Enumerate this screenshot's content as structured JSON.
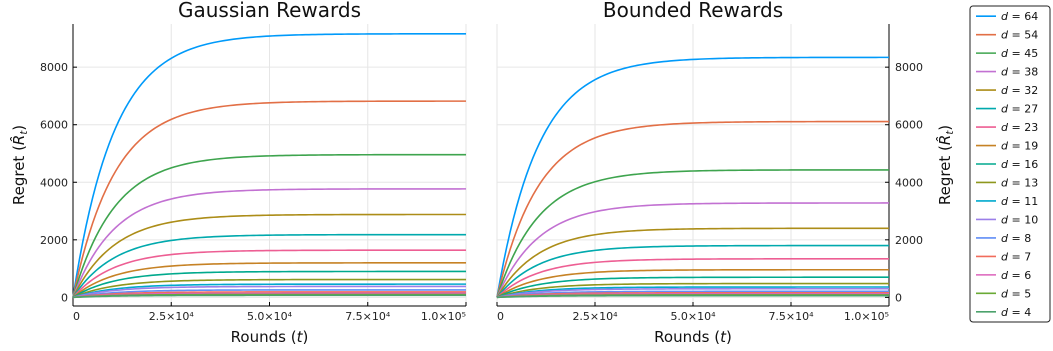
{
  "chart_data": [
    {
      "type": "line",
      "title": "Gaussian Rewards",
      "xlabel": "Rounds (t)",
      "ylabel": "Regret (R̂_t)",
      "xlim": [
        0,
        100000
      ],
      "ylim": [
        -300,
        9500
      ],
      "xticks": [
        0,
        25000,
        50000,
        75000,
        100000
      ],
      "xtick_labels": [
        "0",
        "2.5×10⁴",
        "5.0×10⁴",
        "7.5×10⁴",
        "1.0×10⁵"
      ],
      "yticks": [
        0,
        2000,
        4000,
        6000,
        8000
      ],
      "ytick_labels": [
        "0",
        "2000",
        "4000",
        "6000",
        "8000"
      ],
      "yaxis_side": "left",
      "grid": true,
      "curve_shape": "saturating",
      "series": [
        {
          "name": "d = 64",
          "final": 9160
        },
        {
          "name": "d = 54",
          "final": 6820
        },
        {
          "name": "d = 45",
          "final": 4960
        },
        {
          "name": "d = 38",
          "final": 3770
        },
        {
          "name": "d = 32",
          "final": 2880
        },
        {
          "name": "d = 27",
          "final": 2180
        },
        {
          "name": "d = 23",
          "final": 1640
        },
        {
          "name": "d = 19",
          "final": 1200
        },
        {
          "name": "d = 16",
          "final": 900
        },
        {
          "name": "d = 13",
          "final": 620
        },
        {
          "name": "d = 11",
          "final": 460
        },
        {
          "name": "d = 10",
          "final": 380
        },
        {
          "name": "d = 8",
          "final": 260
        },
        {
          "name": "d = 7",
          "final": 190
        },
        {
          "name": "d = 6",
          "final": 140
        },
        {
          "name": "d = 5",
          "final": 100
        },
        {
          "name": "d = 4",
          "final": 70
        }
      ]
    },
    {
      "type": "line",
      "title": "Bounded Rewards",
      "xlabel": "Rounds (t)",
      "ylabel": "Regret (R̂_t)",
      "xlim": [
        0,
        100000
      ],
      "ylim": [
        -300,
        9500
      ],
      "xticks": [
        0,
        25000,
        50000,
        75000,
        100000
      ],
      "xtick_labels": [
        "0",
        "2.5×10⁴",
        "5.0×10⁴",
        "7.5×10⁴",
        "1.0×10⁵"
      ],
      "yticks": [
        0,
        2000,
        4000,
        6000,
        8000
      ],
      "ytick_labels": [
        "0",
        "2000",
        "4000",
        "6000",
        "8000"
      ],
      "yaxis_side": "right",
      "grid": true,
      "curve_shape": "saturating",
      "series": [
        {
          "name": "d = 64",
          "final": 8340
        },
        {
          "name": "d = 54",
          "final": 6110
        },
        {
          "name": "d = 45",
          "final": 4430
        },
        {
          "name": "d = 38",
          "final": 3280
        },
        {
          "name": "d = 32",
          "final": 2400
        },
        {
          "name": "d = 27",
          "final": 1800
        },
        {
          "name": "d = 23",
          "final": 1340
        },
        {
          "name": "d = 19",
          "final": 960
        },
        {
          "name": "d = 16",
          "final": 700
        },
        {
          "name": "d = 13",
          "final": 480
        },
        {
          "name": "d = 11",
          "final": 360
        },
        {
          "name": "d = 10",
          "final": 300
        },
        {
          "name": "d = 8",
          "final": 210
        },
        {
          "name": "d = 7",
          "final": 160
        },
        {
          "name": "d = 6",
          "final": 120
        },
        {
          "name": "d = 5",
          "final": 85
        },
        {
          "name": "d = 4",
          "final": 60
        }
      ]
    }
  ],
  "legend": {
    "placement": "right",
    "entries": [
      "d = 64",
      "d = 54",
      "d = 45",
      "d = 38",
      "d = 32",
      "d = 27",
      "d = 23",
      "d = 19",
      "d = 16",
      "d = 13",
      "d = 11",
      "d = 10",
      "d = 8",
      "d = 7",
      "d = 6",
      "d = 5",
      "d = 4"
    ]
  },
  "colors": [
    "#009AFA",
    "#E26F46",
    "#3EA44E",
    "#C271D2",
    "#AC8D18",
    "#00A9AD",
    "#ED5E93",
    "#C68225",
    "#00A98D",
    "#8E971D",
    "#00A9CD",
    "#9B7FE9",
    "#618DF6",
    "#F16C5C",
    "#DC63BB",
    "#6AAA35",
    "#4CA26C"
  ]
}
